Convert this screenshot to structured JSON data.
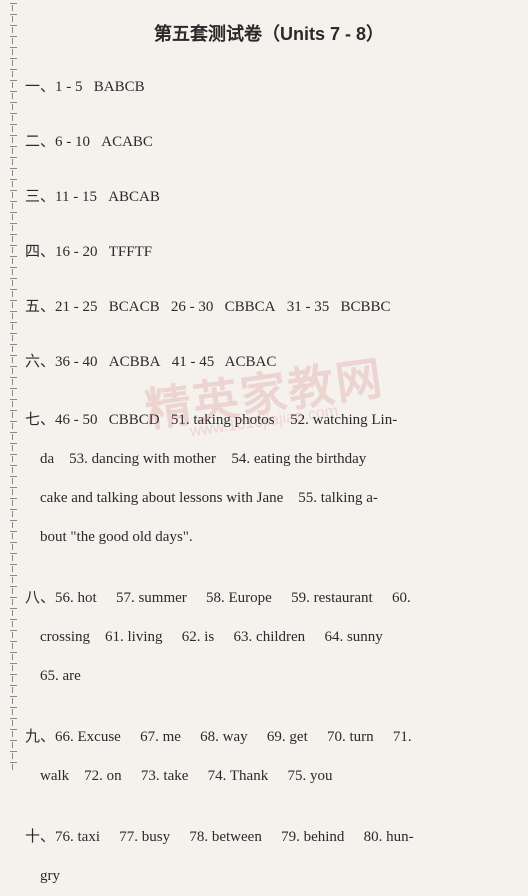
{
  "title": "第五套测试卷（Units 7 - 8）",
  "watermark_main": "精英家教网",
  "watermark_sub": "www.1010jiajiao.com",
  "sections": {
    "s1": {
      "label": "一、1 - 5",
      "answers": "BABCB"
    },
    "s2": {
      "label": "二、6 - 10",
      "answers": "ACABC"
    },
    "s3": {
      "label": "三、11 - 15",
      "answers": "ABCAB"
    },
    "s4": {
      "label": "四、16 - 20",
      "answers": "TFFTF"
    },
    "s5": {
      "label": "五、",
      "parts": [
        {
          "range": "21 - 25",
          "ans": "BCACB"
        },
        {
          "range": "26 - 30",
          "ans": "CBBCA"
        },
        {
          "range": "31 - 35",
          "ans": "BCBBC"
        }
      ]
    },
    "s6": {
      "label": "六、",
      "parts": [
        {
          "range": "36 - 40",
          "ans": "ACBBA"
        },
        {
          "range": "41 - 45",
          "ans": "ACBAC"
        }
      ]
    },
    "s7": {
      "label": "七、",
      "range": "46 - 50",
      "mc": "CBBCD",
      "items": {
        "i51": "51. taking photos",
        "i52": "52. watching Lin-",
        "line2a": "da",
        "i53": "53. dancing with mother",
        "i54": "54. eating the birthday",
        "line3": "cake and talking about lessons with Jane",
        "i55": "55. talking a-",
        "line4": "bout \"the good old days\"."
      }
    },
    "s8": {
      "label": "八、",
      "items": {
        "i56": "56. hot",
        "i57": "57. summer",
        "i58": "58. Europe",
        "i59": "59. restaurant",
        "i60": "60.",
        "line2a": "crossing",
        "i61": "61. living",
        "i62": "62. is",
        "i63": "63. children",
        "i64": "64. sunny",
        "i65": "65. are"
      }
    },
    "s9": {
      "label": "九、",
      "items": {
        "i66": "66. Excuse",
        "i67": "67. me",
        "i68": "68. way",
        "i69": "69. get",
        "i70": "70. turn",
        "i71": "71.",
        "line2a": "walk",
        "i72": "72. on",
        "i73": "73. take",
        "i74": "74. Thank",
        "i75": "75. you"
      }
    },
    "s10": {
      "label": "十、",
      "items": {
        "i76": "76. taxi",
        "i77": "77. busy",
        "i78": "78. between",
        "i79": "79. behind",
        "i80": "80. hun-",
        "line2": "gry"
      }
    }
  }
}
